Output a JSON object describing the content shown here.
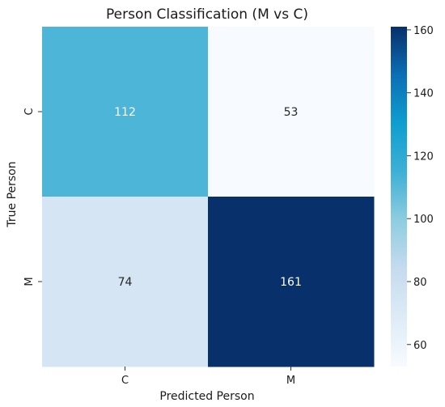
{
  "chart_data": {
    "type": "heatmap",
    "title": "Person Classification (M vs C)",
    "xlabel": "Predicted Person",
    "ylabel": "True Person",
    "x_categories": [
      "C",
      "M"
    ],
    "y_categories": [
      "C",
      "M"
    ],
    "values": [
      [
        112,
        53
      ],
      [
        74,
        161
      ]
    ],
    "colorbar": {
      "min": 53,
      "max": 161,
      "ticks": [
        60,
        80,
        100,
        120,
        140,
        160
      ],
      "colormap": [
        "#f7fbff",
        "#deebf7",
        "#c6dbef",
        "#8fcde0",
        "#3eb0d6",
        "#0f9ecf",
        "#0b6fb6",
        "#08306b"
      ]
    },
    "grid": false,
    "annot_colors": {
      "light": "#ffffff",
      "dark": "#262626"
    }
  }
}
